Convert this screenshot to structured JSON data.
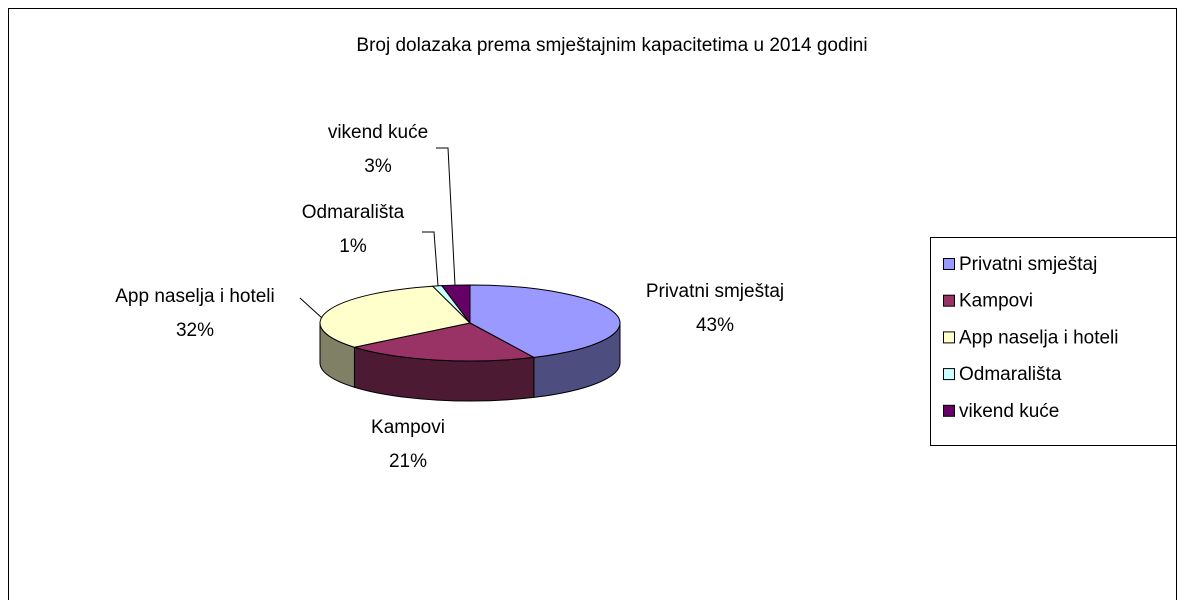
{
  "chart_data": {
    "type": "pie3d",
    "title": "Broj dolazaka prema smještajnim kapacitetima u 2014 godini",
    "categories": [
      "Privatni smještaj",
      "Kampovi",
      "App naselja i hoteli",
      "Odmarališta",
      "vikend kuće"
    ],
    "values": [
      43,
      21,
      32,
      1,
      3
    ],
    "value_labels": [
      "43%",
      "21%",
      "32%",
      "1%",
      "3%"
    ],
    "colors": [
      "#9999FF",
      "#993366",
      "#FFFFCC",
      "#CCFFFF",
      "#660066"
    ],
    "legend": "right"
  }
}
